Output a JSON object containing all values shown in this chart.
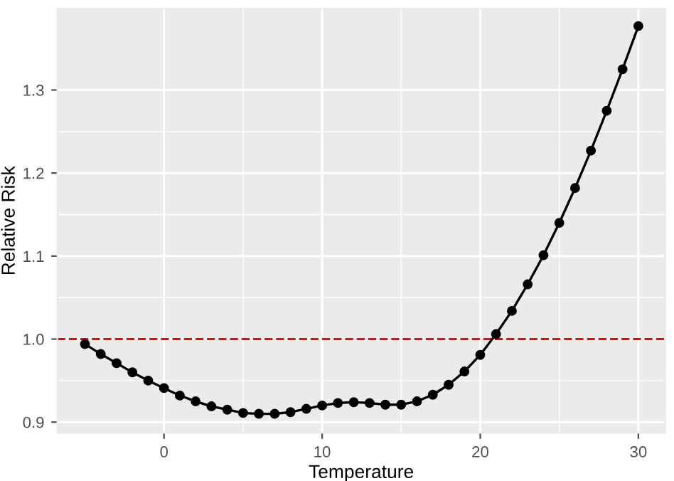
{
  "chart_data": {
    "type": "line",
    "xlabel": "Temperature",
    "ylabel": "Relative Risk",
    "x": [
      -5,
      -4,
      -3,
      -2,
      -1,
      0,
      1,
      2,
      3,
      4,
      5,
      6,
      7,
      8,
      9,
      10,
      11,
      12,
      13,
      14,
      15,
      16,
      17,
      18,
      19,
      20,
      21,
      22,
      23,
      24,
      25,
      26,
      27,
      28,
      29,
      30
    ],
    "series": [
      {
        "color": "#000000",
        "values": [
          0.994,
          0.982,
          0.971,
          0.96,
          0.95,
          0.941,
          0.932,
          0.925,
          0.919,
          0.915,
          0.911,
          0.91,
          0.91,
          0.912,
          0.916,
          0.92,
          0.923,
          0.924,
          0.923,
          0.921,
          0.921,
          0.925,
          0.933,
          0.945,
          0.961,
          0.981,
          1.006,
          1.034,
          1.066,
          1.101,
          1.14,
          1.182,
          1.227,
          1.275,
          1.325,
          1.377
        ]
      }
    ],
    "xlim": [
      -6.75,
      31.7
    ],
    "ylim": [
      0.887,
      1.398
    ],
    "xticks": [
      0,
      10,
      20,
      30
    ],
    "yticks": [
      0.9,
      {
        "value": 1.0,
        "label": "1.0"
      },
      1.1,
      1.2,
      1.3
    ],
    "ref_lines": [
      {
        "axis": "y",
        "value": 1.0,
        "color": "#ff0000",
        "line_style": "dashed"
      }
    ],
    "grid": true,
    "marker": "circle",
    "line_style": "solid"
  }
}
